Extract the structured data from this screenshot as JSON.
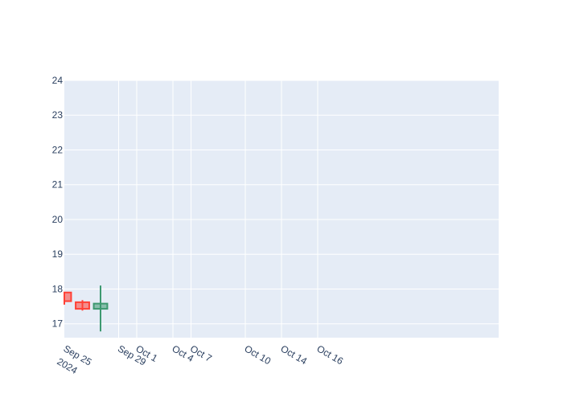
{
  "chart_data": {
    "type": "candlestick",
    "title": "",
    "xlabel": "",
    "ylabel": "",
    "ylim": [
      16.6,
      24
    ],
    "xlim": [
      "2024-09-24",
      "2024-10-18"
    ],
    "y_ticks": [
      17,
      18,
      19,
      20,
      21,
      22,
      23,
      24
    ],
    "x_ticks": [
      {
        "date": "2024-09-24",
        "label": "Sep 25",
        "sublabel": "2024"
      },
      {
        "date": "2024-09-27",
        "label": "Sep 29"
      },
      {
        "date": "2024-09-28",
        "label": "Oct 1"
      },
      {
        "date": "2024-09-30",
        "label": "Oct 4"
      },
      {
        "date": "2024-10-01",
        "label": "Oct 7"
      },
      {
        "date": "2024-10-04",
        "label": "Oct 10"
      },
      {
        "date": "2024-10-06",
        "label": "Oct 14"
      },
      {
        "date": "2024-10-08",
        "label": "Oct 16"
      }
    ],
    "candles": [
      {
        "date": "2024-09-24",
        "open": 17.9,
        "high": 17.9,
        "low": 17.55,
        "close": 17.65
      },
      {
        "date": "2024-09-25",
        "open": 17.62,
        "high": 17.68,
        "low": 17.38,
        "close": 17.43
      },
      {
        "date": "2024-09-26",
        "open": 17.43,
        "high": 18.1,
        "low": 16.78,
        "close": 17.58
      }
    ],
    "grid": true,
    "colors": {
      "increasing": "#3d9970",
      "decreasing": "#ff4136",
      "plot_bg": "#e5ecf6",
      "grid": "#ffffff",
      "text": "#2a3f5f"
    }
  }
}
